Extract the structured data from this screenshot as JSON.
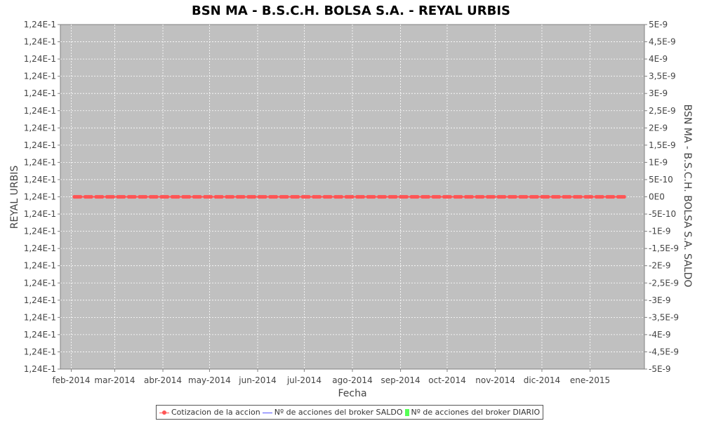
{
  "chart_data": {
    "type": "line",
    "title": "BSN MA - B.S.C.H. BOLSA S.A. - REYAL URBIS",
    "xlabel": "Fecha",
    "ylabel_left": "REYAL URBIS",
    "ylabel_right": "BSN MA - B.S.C.H. BOLSA S.A. SALDO",
    "x_ticks": [
      "feb-2014",
      "mar-2014",
      "abr-2014",
      "may-2014",
      "jun-2014",
      "jul-2014",
      "ago-2014",
      "sep-2014",
      "oct-2014",
      "nov-2014",
      "dic-2014",
      "ene-2015"
    ],
    "x_range": [
      "2014-01-25",
      "2015-02-05"
    ],
    "left_ticks": [
      "1,24E-1",
      "1,24E-1",
      "1,24E-1",
      "1,24E-1",
      "1,24E-1",
      "1,24E-1",
      "1,24E-1",
      "1,24E-1",
      "1,24E-1",
      "1,24E-1",
      "1,24E-1",
      "1,24E-1",
      "1,24E-1",
      "1,24E-1",
      "1,24E-1",
      "1,24E-1",
      "1,24E-1",
      "1,24E-1",
      "1,24E-1",
      "1,24E-1",
      "1,24E-1"
    ],
    "right_ticks": [
      "5E-9",
      "4,5E-9",
      "4E-9",
      "3,5E-9",
      "3E-9",
      "2,5E-9",
      "2E-9",
      "1,5E-9",
      "1E-9",
      "5E-10",
      "0E0",
      "-5E-10",
      "-1E-9",
      "-1,5E-9",
      "-2E-9",
      "-2,5E-9",
      "-3E-9",
      "-3,5E-9",
      "-4E-9",
      "-4,5E-9",
      "-5E-9"
    ],
    "right_ylim": [
      -5e-09,
      5e-09
    ],
    "grid": true,
    "legend_position": "bottom",
    "series": [
      {
        "name": "Cotizacion de la accion",
        "type": "line",
        "axis": "left",
        "color": "#ff5555",
        "x_start": "2014-02-03",
        "x_end": "2015-01-23",
        "y": 0.124
      },
      {
        "name": "Nº de acciones del broker SALDO",
        "type": "line",
        "axis": "right",
        "color": "#5555ff",
        "x_start": "2014-02-03",
        "x_end": "2015-01-23",
        "y": 0
      },
      {
        "name": "Nº de acciones del broker DIARIO",
        "type": "bar",
        "axis": "right",
        "color": "#55ff55",
        "values": []
      }
    ],
    "plot_bg": "#c0c0c0"
  }
}
